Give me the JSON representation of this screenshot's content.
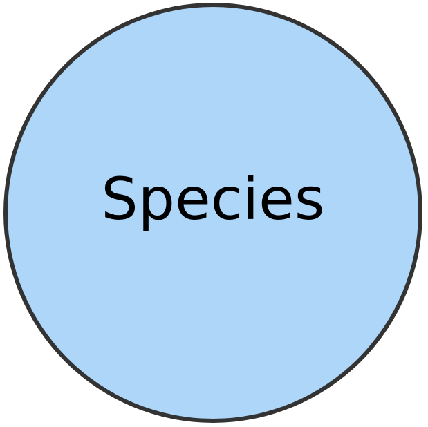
{
  "node": {
    "label": "Species",
    "fill_color": "#add6f9",
    "stroke_color": "#333333",
    "text_color": "#000000"
  }
}
